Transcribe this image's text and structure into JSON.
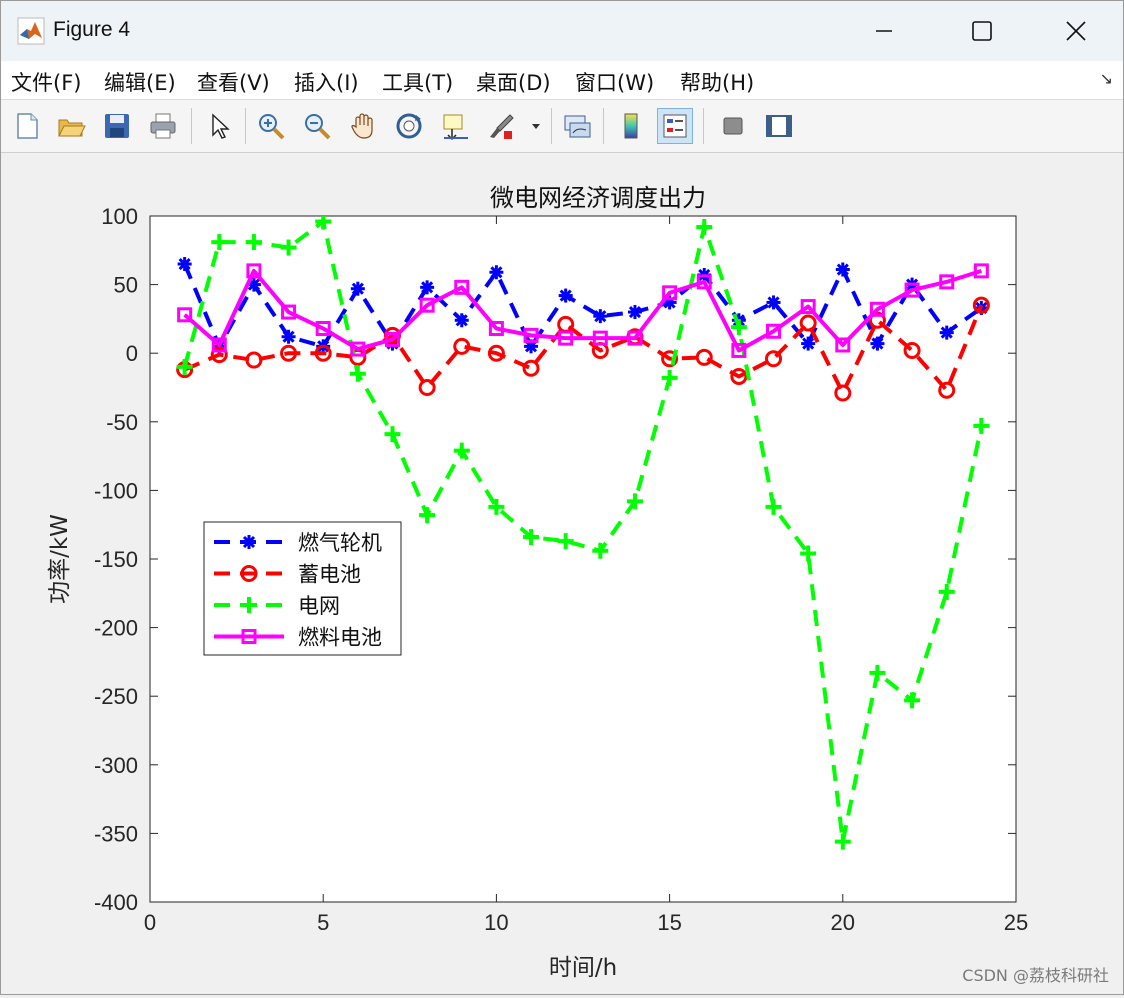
{
  "window": {
    "title": "Figure 4"
  },
  "menu": [
    "文件(F)",
    "编辑(E)",
    "查看(V)",
    "插入(I)",
    "工具(T)",
    "桌面(D)",
    "窗口(W)",
    "帮助(H)"
  ],
  "toolbar": {
    "icons": [
      "new-figure-icon",
      "open-file-icon",
      "save-icon",
      "print-icon",
      "select-arrow-icon",
      "zoom-in-icon",
      "zoom-out-icon",
      "pan-hand-icon",
      "rotate-3d-icon",
      "data-cursor-icon",
      "brush-icon",
      "link-plot-icon",
      "colorbar-icon",
      "legend-icon",
      "hide-plot-tools-icon",
      "show-plot-tools-icon"
    ]
  },
  "watermark": "CSDN @荔枝科研社",
  "chart_data": {
    "type": "line",
    "title": "微电网经济调度出力",
    "xlabel": "时间/h",
    "ylabel": "功率/kW",
    "xlim": [
      0,
      25
    ],
    "ylim": [
      -400,
      100
    ],
    "xticks": [
      0,
      5,
      10,
      15,
      20,
      25
    ],
    "yticks": [
      100,
      50,
      0,
      -50,
      -100,
      -150,
      -200,
      -250,
      -300,
      -350,
      -400
    ],
    "grid": false,
    "legend_position": "left-middle",
    "x": [
      1,
      2,
      3,
      4,
      5,
      6,
      7,
      8,
      9,
      10,
      11,
      12,
      13,
      14,
      15,
      16,
      17,
      18,
      19,
      20,
      21,
      22,
      23,
      24
    ],
    "series": [
      {
        "name": "燃气轮机",
        "color": "#0000ff",
        "marker": "asterisk",
        "dashed": true,
        "values": [
          65,
          5,
          50,
          12,
          5,
          47,
          7,
          48,
          24,
          59,
          5,
          42,
          27,
          30,
          37,
          57,
          24,
          37,
          7,
          61,
          7,
          50,
          15,
          33
        ]
      },
      {
        "name": "蓄电池",
        "color": "#ff0000",
        "marker": "circle",
        "dashed": true,
        "values": [
          -12,
          -1,
          -5,
          0,
          0,
          -3,
          13,
          -25,
          5,
          0,
          -11,
          21,
          2,
          12,
          -4,
          -3,
          -17,
          -4,
          22,
          -29,
          24,
          2,
          -27,
          35
        ]
      },
      {
        "name": "电网",
        "color": "#00ff00",
        "marker": "plus",
        "dashed": true,
        "values": [
          -10,
          81,
          81,
          77,
          96,
          -15,
          -59,
          -118,
          -71,
          -112,
          -134,
          -137,
          -144,
          -108,
          -18,
          92,
          19,
          -112,
          -146,
          -356,
          -233,
          -253,
          -174,
          -53
        ]
      },
      {
        "name": "燃料电池",
        "color": "#ff00ff",
        "marker": "square",
        "dashed": false,
        "values": [
          28,
          6,
          60,
          30,
          18,
          3,
          10,
          35,
          48,
          18,
          13,
          11,
          11,
          11,
          44,
          52,
          2,
          16,
          34,
          6,
          32,
          46,
          52,
          60
        ]
      }
    ]
  }
}
